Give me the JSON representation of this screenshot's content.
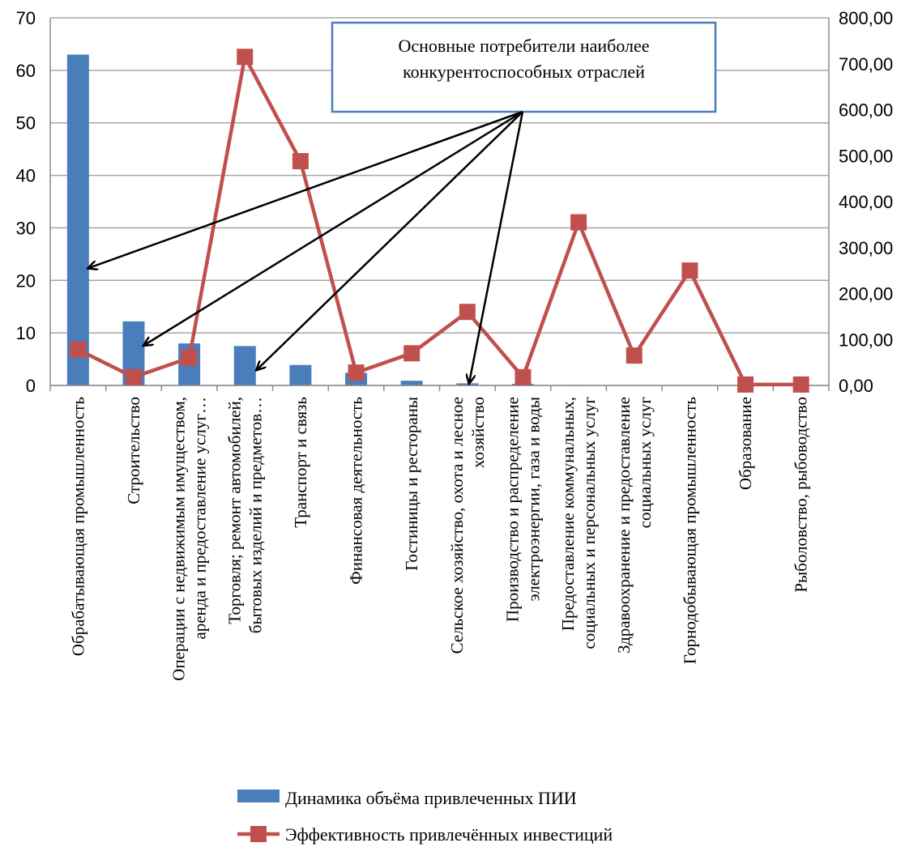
{
  "chart_data": {
    "type": "bar",
    "categories": [
      [
        "Обрабатывающая промышленность"
      ],
      [
        "Строительство"
      ],
      [
        "Операции  с недвижимым имуществом,",
        "аренда и предоставление услуг…"
      ],
      [
        "Торговля; ремонт автомобилей,",
        "бытовых изделий и предметов…"
      ],
      [
        "Транспорт  и связь"
      ],
      [
        "Финансовая  деятельность"
      ],
      [
        "Гостиницы и рестораны"
      ],
      [
        "Сельское хозяйство, охота и лесное",
        "хозяйство"
      ],
      [
        "Производство и распределение",
        "электроэнергии,  газа и воды"
      ],
      [
        "Предоставление коммунальных,",
        "социальных и персональных услуг"
      ],
      [
        "Здравоохранение и предоставление",
        "социальных услуг"
      ],
      [
        "Горнодобывающая промышленность"
      ],
      [
        "Образование"
      ],
      [
        "Рыболовство, рыбоводство"
      ]
    ],
    "series": [
      {
        "name": "Динамика  объёма привлеченных ПИИ",
        "type": "bar",
        "axis": "left",
        "color": "#4a7ebb",
        "values": [
          63.0,
          12.2,
          8.0,
          7.5,
          3.9,
          2.4,
          0.9,
          0.4,
          0.3,
          0.1,
          0.05,
          0.05,
          0.02,
          0.02
        ]
      },
      {
        "name": "Эффективность привлечённых  инвестиций",
        "type": "line",
        "axis": "right",
        "color": "#c0504d",
        "values": [
          78,
          18,
          60,
          715,
          488,
          28,
          70,
          160,
          18,
          355,
          65,
          250,
          2,
          2
        ]
      }
    ],
    "left_axis": {
      "min": 0,
      "max": 70,
      "ticks": [
        "0",
        "10",
        "20",
        "30",
        "40",
        "50",
        "60",
        "70"
      ]
    },
    "right_axis": {
      "min": 0,
      "max": 800,
      "ticks": [
        "0,00",
        "100,00",
        "200,00",
        "300,00",
        "400,00",
        "500,00",
        "600,00",
        "700,00",
        "800,00"
      ]
    },
    "grid": true,
    "legend": "bottom",
    "annotation": {
      "lines": [
        "Основные  потребители  наиболее",
        "конкурентоспособных  отраслей"
      ],
      "arrow_targets": [
        0,
        1,
        3,
        7
      ]
    }
  }
}
